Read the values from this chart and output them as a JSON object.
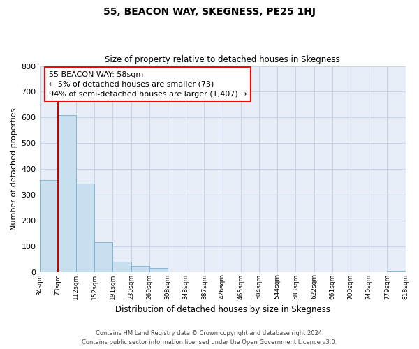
{
  "title": "55, BEACON WAY, SKEGNESS, PE25 1HJ",
  "subtitle": "Size of property relative to detached houses in Skegness",
  "xlabel": "Distribution of detached houses by size in Skegness",
  "ylabel": "Number of detached properties",
  "bar_values": [
    358,
    610,
    344,
    115,
    40,
    22,
    15,
    0,
    0,
    0,
    0,
    0,
    0,
    0,
    0,
    0,
    0,
    0,
    0,
    5
  ],
  "bar_labels": [
    "34sqm",
    "73sqm",
    "112sqm",
    "152sqm",
    "191sqm",
    "230sqm",
    "269sqm",
    "308sqm",
    "348sqm",
    "387sqm",
    "426sqm",
    "465sqm",
    "504sqm",
    "544sqm",
    "583sqm",
    "622sqm",
    "661sqm",
    "700sqm",
    "740sqm",
    "779sqm",
    "818sqm"
  ],
  "bar_color": "#c8dff0",
  "bar_edge_color": "#7ab0d4",
  "ylim": [
    0,
    800
  ],
  "yticks": [
    0,
    100,
    200,
    300,
    400,
    500,
    600,
    700,
    800
  ],
  "annotation_line1": "55 BEACON WAY: 58sqm",
  "annotation_line2": "← 5% of detached houses are smaller (73)",
  "annotation_line3": "94% of semi-detached houses are larger (1,407) →",
  "footer_line1": "Contains HM Land Registry data © Crown copyright and database right 2024.",
  "footer_line2": "Contains public sector information licensed under the Open Government Licence v3.0.",
  "grid_color": "#c8d4e8",
  "background_color": "#ffffff",
  "plot_bg_color": "#e8eef8",
  "red_line_color": "#cc0000"
}
